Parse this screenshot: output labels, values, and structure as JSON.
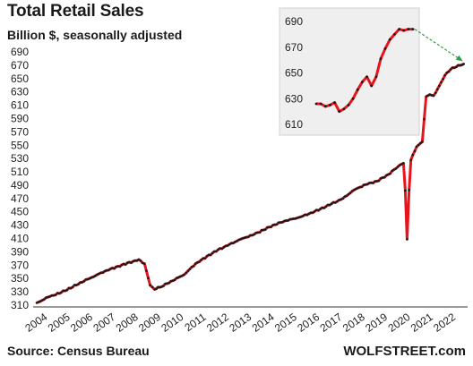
{
  "header": {
    "title": "Total Retail Sales",
    "subtitle": "Billion $, seasonally adjusted"
  },
  "footer": {
    "source": "Source: Census Bureau",
    "brand": "WOLFSTREET.com"
  },
  "colors": {
    "line": "#e8141b",
    "markers": "#1a1a1a",
    "inset_bg": "#efefef",
    "arrow": "#2e9e45"
  },
  "chart_data": [
    {
      "type": "line",
      "title": "Total Retail Sales",
      "subtitle": "Billion $, seasonally adjusted",
      "xlabel": "",
      "ylabel": "",
      "ylim": [
        310,
        690
      ],
      "yticks": [
        310,
        330,
        350,
        370,
        390,
        410,
        430,
        450,
        470,
        490,
        510,
        530,
        550,
        570,
        590,
        610,
        630,
        650,
        670,
        690
      ],
      "xticks": [
        "2004",
        "2005",
        "2006",
        "2007",
        "2008",
        "2009",
        "2010",
        "2011",
        "2012",
        "2013",
        "2014",
        "2015",
        "2016",
        "2017",
        "2018",
        "2019",
        "2020",
        "2021",
        "2022"
      ],
      "grid": false,
      "series": [
        {
          "values": [
            [
              2004.0,
              313
            ],
            [
              2004.5,
              322
            ],
            [
              2005.0,
              328
            ],
            [
              2005.5,
              336
            ],
            [
              2006.0,
              345
            ],
            [
              2006.5,
              353
            ],
            [
              2007.0,
              361
            ],
            [
              2007.5,
              367
            ],
            [
              2008.0,
              373
            ],
            [
              2008.5,
              378
            ],
            [
              2008.75,
              372
            ],
            [
              2009.0,
              340
            ],
            [
              2009.2,
              334
            ],
            [
              2009.5,
              338
            ],
            [
              2010.0,
              347
            ],
            [
              2010.5,
              356
            ],
            [
              2011.0,
              372
            ],
            [
              2011.5,
              383
            ],
            [
              2012.0,
              393
            ],
            [
              2012.5,
              401
            ],
            [
              2013.0,
              409
            ],
            [
              2013.5,
              415
            ],
            [
              2014.0,
              423
            ],
            [
              2014.5,
              431
            ],
            [
              2015.0,
              437
            ],
            [
              2015.5,
              441
            ],
            [
              2016.0,
              447
            ],
            [
              2016.5,
              454
            ],
            [
              2017.0,
              462
            ],
            [
              2017.5,
              470
            ],
            [
              2018.0,
              483
            ],
            [
              2018.5,
              491
            ],
            [
              2019.0,
              496
            ],
            [
              2019.5,
              506
            ],
            [
              2020.0,
              520
            ],
            [
              2020.17,
              523
            ],
            [
              2020.25,
              482
            ],
            [
              2020.33,
              409
            ],
            [
              2020.42,
              483
            ],
            [
              2020.5,
              528
            ],
            [
              2020.75,
              548
            ],
            [
              2021.0,
              555
            ],
            [
              2021.17,
              623
            ],
            [
              2021.33,
              626
            ],
            [
              2021.5,
              624
            ],
            [
              2021.75,
              639
            ],
            [
              2022.0,
              655
            ],
            [
              2022.25,
              664
            ],
            [
              2022.5,
              668
            ],
            [
              2022.83,
              672
            ]
          ]
        }
      ]
    },
    {
      "type": "line",
      "title": "",
      "ylim": [
        610,
        690
      ],
      "yticks": [
        610,
        630,
        650,
        670,
        690
      ],
      "grid": false,
      "series": [
        {
          "values": [
            626,
            626,
            624,
            625,
            627,
            620,
            622,
            625,
            630,
            637,
            643,
            647,
            640,
            647,
            661,
            669,
            676,
            680,
            684,
            683,
            684,
            684
          ]
        }
      ]
    }
  ]
}
